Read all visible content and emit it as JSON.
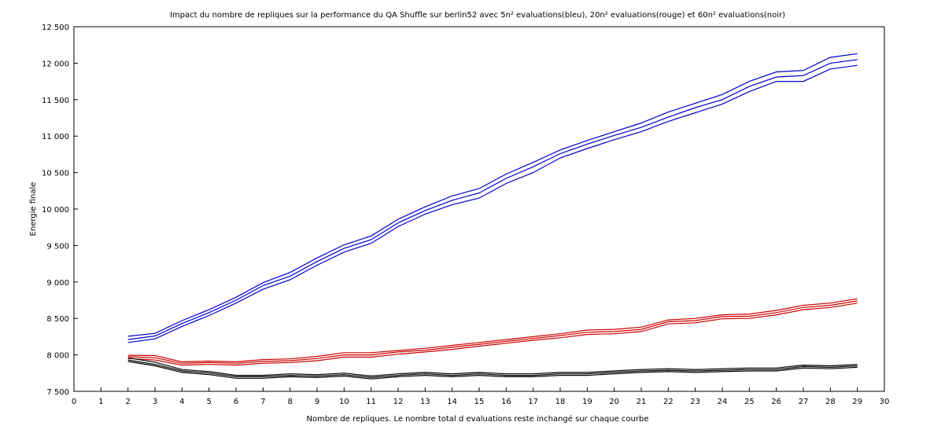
{
  "chart_data": {
    "type": "line",
    "title": "Impact du nombre de repliques sur la performance du QA Shuffle sur berlin52 avec 5n² evaluations(bleu), 20n² evaluations(rouge) et 60n² evaluations(noir)",
    "xlabel": "Nombre de repliques. Le nombre total d evaluations reste inchangé sur chaque courbe",
    "ylabel": "Energie finale",
    "xlim": [
      0,
      30
    ],
    "ylim": [
      7500,
      12500
    ],
    "xticks": [
      0,
      1,
      2,
      3,
      4,
      5,
      6,
      7,
      8,
      9,
      10,
      11,
      12,
      13,
      14,
      15,
      16,
      17,
      18,
      19,
      20,
      21,
      22,
      23,
      24,
      25,
      26,
      27,
      28,
      29,
      30
    ],
    "xtick_labels": [
      "0",
      "1",
      "2",
      "3",
      "4",
      "5",
      "6",
      "7",
      "8",
      "9",
      "10",
      "11",
      "12",
      "13",
      "14",
      "15",
      "16",
      "17",
      "18",
      "19",
      "20",
      "21",
      "22",
      "23",
      "24",
      "25",
      "26",
      "27",
      "28",
      "29",
      "30"
    ],
    "yticks": [
      7500,
      8000,
      8500,
      9000,
      9500,
      10000,
      10500,
      11000,
      11500,
      12000,
      12500
    ],
    "ytick_labels": [
      "7 500",
      "8 000",
      "8 500",
      "9 000",
      "9 500",
      "10 000",
      "10 500",
      "11 000",
      "11 500",
      "12 000",
      "12 500"
    ],
    "grid": false,
    "x": [
      2,
      3,
      4,
      5,
      6,
      7,
      8,
      9,
      10,
      11,
      12,
      13,
      14,
      15,
      16,
      17,
      18,
      19,
      20,
      21,
      22,
      23,
      24,
      25,
      26,
      27,
      28,
      29
    ],
    "series": [
      {
        "color": "#0000cc",
        "values": [
          8255,
          8295,
          8470,
          8620,
          8790,
          8990,
          9130,
          9330,
          9510,
          9630,
          9860,
          10030,
          10180,
          10280,
          10480,
          10640,
          10810,
          10940,
          11060,
          11180,
          11330,
          11450,
          11570,
          11750,
          11880,
          11900,
          12080,
          12130
        ]
      },
      {
        "color": "#0000cc",
        "values": [
          8210,
          8260,
          8430,
          8580,
          8750,
          8950,
          9080,
          9280,
          9460,
          9580,
          9810,
          9980,
          10120,
          10220,
          10420,
          10580,
          10760,
          10890,
          11010,
          11120,
          11260,
          11390,
          11500,
          11680,
          11810,
          11830,
          12000,
          12050
        ]
      },
      {
        "color": "#0000cc",
        "values": [
          8170,
          8220,
          8390,
          8540,
          8710,
          8900,
          9030,
          9230,
          9410,
          9530,
          9760,
          9930,
          10060,
          10150,
          10350,
          10500,
          10700,
          10830,
          10950,
          11060,
          11200,
          11320,
          11440,
          11610,
          11750,
          11750,
          11920,
          11970
        ]
      },
      {
        "color": "#cc0000",
        "values": [
          7995,
          7990,
          7905,
          7915,
          7905,
          7935,
          7945,
          7980,
          8030,
          8030,
          8060,
          8090,
          8130,
          8170,
          8210,
          8250,
          8290,
          8340,
          8350,
          8380,
          8480,
          8500,
          8550,
          8560,
          8610,
          8680,
          8710,
          8770
        ]
      },
      {
        "color": "#cc0000",
        "values": [
          7975,
          7960,
          7885,
          7895,
          7885,
          7910,
          7920,
          7950,
          8000,
          8000,
          8040,
          8065,
          8105,
          8145,
          8185,
          8225,
          8265,
          8310,
          8320,
          8350,
          8455,
          8470,
          8525,
          8530,
          8580,
          8650,
          8680,
          8740
        ]
      },
      {
        "color": "#cc0000",
        "values": [
          7950,
          7930,
          7860,
          7870,
          7860,
          7885,
          7895,
          7920,
          7970,
          7970,
          8010,
          8040,
          8075,
          8120,
          8160,
          8200,
          8235,
          8280,
          8290,
          8320,
          8425,
          8440,
          8495,
          8500,
          8550,
          8620,
          8650,
          8710
        ]
      },
      {
        "color": "#000000",
        "values": [
          7960,
          7900,
          7800,
          7770,
          7720,
          7720,
          7740,
          7730,
          7750,
          7710,
          7740,
          7760,
          7740,
          7760,
          7740,
          7740,
          7760,
          7760,
          7780,
          7800,
          7810,
          7800,
          7810,
          7820,
          7820,
          7860,
          7850,
          7870
        ]
      },
      {
        "color": "#000000",
        "values": [
          7930,
          7870,
          7780,
          7750,
          7700,
          7700,
          7720,
          7710,
          7730,
          7690,
          7720,
          7740,
          7720,
          7740,
          7720,
          7720,
          7740,
          7740,
          7760,
          7780,
          7790,
          7780,
          7790,
          7800,
          7800,
          7840,
          7830,
          7850
        ]
      },
      {
        "color": "#000000",
        "values": [
          7910,
          7850,
          7760,
          7730,
          7680,
          7680,
          7700,
          7690,
          7710,
          7670,
          7700,
          7720,
          7700,
          7720,
          7700,
          7700,
          7720,
          7720,
          7740,
          7760,
          7770,
          7760,
          7770,
          7780,
          7780,
          7820,
          7810,
          7830
        ]
      }
    ]
  }
}
